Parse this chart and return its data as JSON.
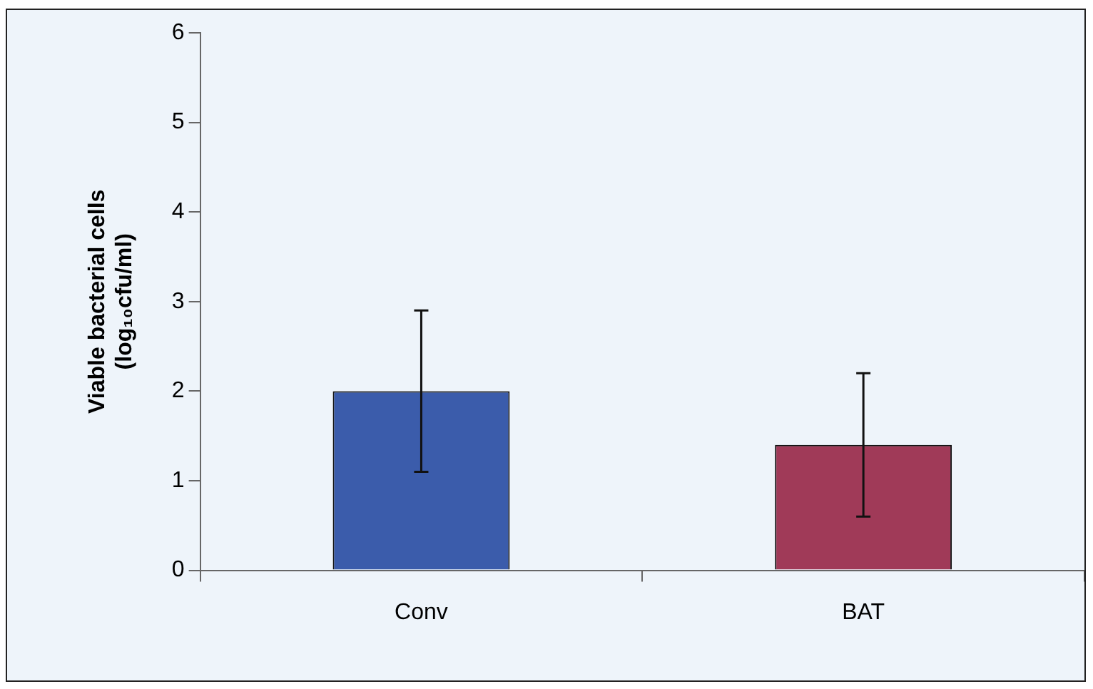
{
  "chart_data": {
    "type": "bar",
    "ylabel": "Viable bacterial cells\n(log₁₀cfu/ml)",
    "categories": [
      "Conv",
      "BAT"
    ],
    "values": [
      2.0,
      1.4
    ],
    "colors": [
      "#3b5cab",
      "#a03a58"
    ],
    "errors": [
      0.9,
      0.8
    ],
    "ylim": [
      0,
      6
    ],
    "yticks": [
      0,
      1,
      2,
      3,
      4,
      5,
      6
    ],
    "grid": false,
    "legend": false
  }
}
